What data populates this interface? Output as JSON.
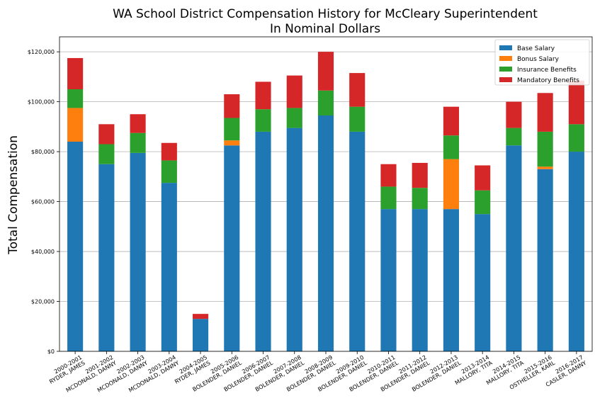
{
  "chart_data": {
    "type": "bar",
    "stacked": true,
    "title": "WA School District Compensation History for McCleary Superintendent",
    "subtitle": "In Nominal Dollars",
    "ylabel": "Total Compensation",
    "xlabel": "",
    "ylim": [
      0,
      126000
    ],
    "yticks": [
      0,
      20000,
      40000,
      60000,
      80000,
      100000,
      120000
    ],
    "ytick_labels": [
      "$0",
      "$20,000",
      "$40,000",
      "$60,000",
      "$80,000",
      "$100,000",
      "$120,000"
    ],
    "grid": "horizontal",
    "legend_position": "top-right",
    "categories": [
      [
        "2000-2001",
        "RYDER, JAMES"
      ],
      [
        "2001-2002",
        "MCDONALD, DANNY"
      ],
      [
        "2002-2003",
        "MCDONALD, DANNY"
      ],
      [
        "2003-2004",
        "MCDONALD, DANNY"
      ],
      [
        "2004-2005",
        "RYDER, JAMES"
      ],
      [
        "2005-2006",
        "BOLENDER, DANIEL"
      ],
      [
        "2006-2007",
        "BOLENDER, DANIEL"
      ],
      [
        "2007-2008",
        "BOLENDER, DANIEL"
      ],
      [
        "2008-2009",
        "BOLENDER, DANIEL"
      ],
      [
        "2009-2010",
        "BOLENDER, DANIEL"
      ],
      [
        "2010-2011",
        "BOLENDER, DANIEL"
      ],
      [
        "2011-2012",
        "BOLENDER, DANIEL"
      ],
      [
        "2012-2013",
        "BOLENDER, DANIEL"
      ],
      [
        "2013-2014",
        "MALLORY, TITA"
      ],
      [
        "2014-2015",
        "MALLORY, TITA"
      ],
      [
        "2015-2016",
        "OSTHELLER, KARL"
      ],
      [
        "2016-2017",
        "CASLER, DANNY"
      ]
    ],
    "series": [
      {
        "name": "Base Salary",
        "color": "#1f77b4",
        "values": [
          84000,
          75000,
          79500,
          67500,
          13000,
          82500,
          88000,
          89500,
          94500,
          88000,
          57000,
          57000,
          57000,
          55000,
          82500,
          73000,
          80000
        ]
      },
      {
        "name": "Bonus Salary",
        "color": "#ff7f0e",
        "values": [
          13500,
          0,
          0,
          0,
          0,
          2000,
          0,
          0,
          0,
          0,
          0,
          0,
          20000,
          0,
          0,
          1000,
          0
        ]
      },
      {
        "name": "Insurance Benefits",
        "color": "#2ca02c",
        "values": [
          7500,
          8000,
          8000,
          9000,
          0,
          9000,
          9000,
          8000,
          10000,
          10000,
          9000,
          8500,
          9500,
          9500,
          7000,
          14000,
          11000
        ]
      },
      {
        "name": "Mandatory Benefits",
        "color": "#d62728",
        "values": [
          12500,
          8000,
          7500,
          7000,
          2000,
          9500,
          11000,
          13000,
          15500,
          13500,
          9000,
          10000,
          11500,
          10000,
          10500,
          15500,
          17500
        ]
      }
    ]
  }
}
